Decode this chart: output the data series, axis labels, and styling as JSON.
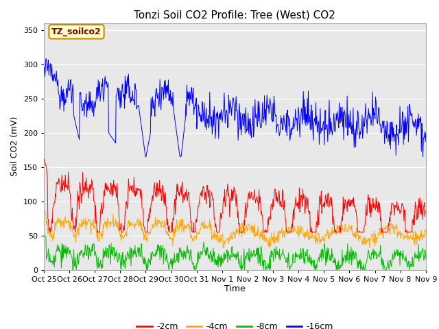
{
  "title": "Tonzi Soil CO2 Profile: Tree (West) CO2",
  "ylabel": "Soil CO2 (mV)",
  "xlabel": "Time",
  "ylim": [
    0,
    360
  ],
  "yticks": [
    0,
    50,
    100,
    150,
    200,
    250,
    300,
    350
  ],
  "xtick_labels": [
    "Oct 25",
    "Oct 26",
    "Oct 27",
    "Oct 28",
    "Oct 29",
    "Oct 30",
    "Oct 31",
    "Nov 1",
    "Nov 2",
    "Nov 3",
    "Nov 4",
    "Nov 5",
    "Nov 6",
    "Nov 7",
    "Nov 8",
    "Nov 9"
  ],
  "legend_label": "TZ_soilco2",
  "series_labels": [
    "-2cm",
    "-4cm",
    "-8cm",
    "-16cm"
  ],
  "series_colors": [
    "#ff0000",
    "#ffa500",
    "#00bb00",
    "#0000ff"
  ],
  "plot_bg_color": "#e8e8e8",
  "title_fontsize": 11,
  "axis_fontsize": 9,
  "tick_fontsize": 8,
  "legend_fontsize": 9
}
